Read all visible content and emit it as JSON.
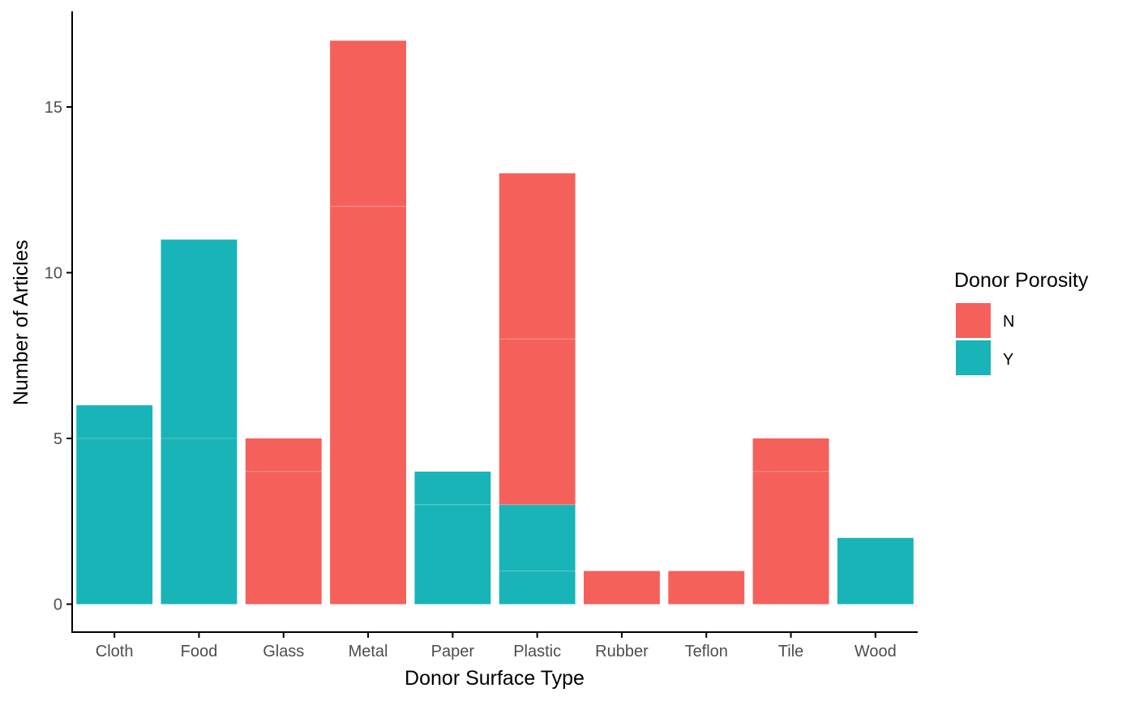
{
  "chart_data": {
    "type": "bar",
    "stacked": true,
    "xlabel": "Donor Surface Type",
    "ylabel": "Number of Articles",
    "categories": [
      "Cloth",
      "Food",
      "Glass",
      "Metal",
      "Paper",
      "Plastic",
      "Rubber",
      "Teflon",
      "Tile",
      "Wood"
    ],
    "yticks": [
      "0",
      "5",
      "10",
      "15"
    ],
    "ylim": [
      0,
      17.5
    ],
    "grid": false,
    "legend": {
      "title": "Donor Porosity",
      "position": "right",
      "entries": [
        {
          "key": "N",
          "label": "N",
          "color": "#F5605B"
        },
        {
          "key": "Y",
          "label": "Y",
          "color": "#19B4B8"
        }
      ]
    },
    "series": [
      {
        "key": "Y",
        "color": "#19B4B8",
        "values": [
          6,
          11,
          0,
          0,
          4,
          3,
          0,
          0,
          0,
          2
        ]
      },
      {
        "key": "N",
        "color": "#F5605B",
        "values": [
          0,
          0,
          5,
          17,
          0,
          10,
          1,
          1,
          5,
          0
        ]
      }
    ],
    "segments": [
      {
        "category": "Cloth",
        "key": "Y",
        "count": 5
      },
      {
        "category": "Cloth",
        "key": "Y",
        "count": 1
      },
      {
        "category": "Food",
        "key": "Y",
        "count": 5
      },
      {
        "category": "Food",
        "key": "Y",
        "count": 6
      },
      {
        "category": "Glass",
        "key": "N",
        "count": 4
      },
      {
        "category": "Glass",
        "key": "N",
        "count": 1
      },
      {
        "category": "Metal",
        "key": "N",
        "count": 12
      },
      {
        "category": "Metal",
        "key": "N",
        "count": 5
      },
      {
        "category": "Paper",
        "key": "Y",
        "count": 3
      },
      {
        "category": "Paper",
        "key": "Y",
        "count": 1
      },
      {
        "category": "Plastic",
        "key": "Y",
        "count": 1
      },
      {
        "category": "Plastic",
        "key": "Y",
        "count": 2
      },
      {
        "category": "Plastic",
        "key": "N",
        "count": 5
      },
      {
        "category": "Plastic",
        "key": "N",
        "count": 5
      },
      {
        "category": "Rubber",
        "key": "N",
        "count": 1
      },
      {
        "category": "Teflon",
        "key": "N",
        "count": 1
      },
      {
        "category": "Tile",
        "key": "N",
        "count": 4
      },
      {
        "category": "Tile",
        "key": "N",
        "count": 1
      },
      {
        "category": "Wood",
        "key": "Y",
        "count": 2
      }
    ]
  }
}
